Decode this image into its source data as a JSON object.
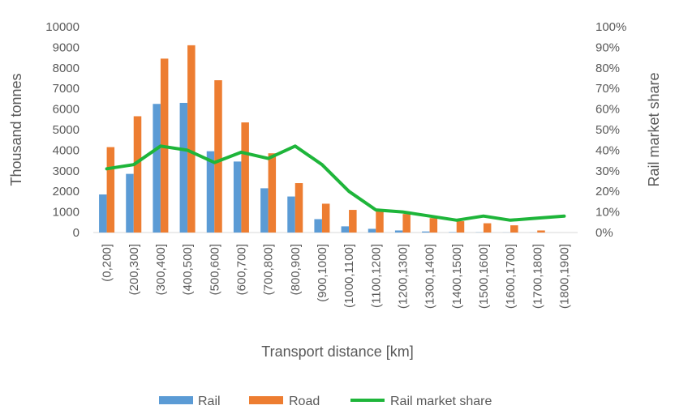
{
  "chart_data": {
    "type": "bar",
    "categories": [
      "(0,200]",
      "(200,300]",
      "(300,400]",
      "(400,500]",
      "(500,600]",
      "(600,700]",
      "(700,800]",
      "(800,900]",
      "(900,1000]",
      "(1000,1100]",
      "(1100,1200]",
      "(1200,1300]",
      "(1300,1400]",
      "(1400,1500]",
      "(1500,1600]",
      "(1600,1700]",
      "(1700,1800]",
      "(1800,1900]"
    ],
    "series": [
      {
        "name": "Rail",
        "type": "bar",
        "axis": "left",
        "color": "#5B9BD5",
        "values": [
          1850,
          2850,
          6250,
          6300,
          3950,
          3450,
          2150,
          1750,
          650,
          300,
          180,
          100,
          50,
          20,
          10,
          5,
          5,
          0
        ]
      },
      {
        "name": "Road",
        "type": "bar",
        "axis": "left",
        "color": "#ED7D31",
        "values": [
          4150,
          5650,
          8450,
          9100,
          7400,
          5350,
          3850,
          2400,
          1400,
          1100,
          1100,
          900,
          700,
          550,
          450,
          350,
          100,
          0
        ]
      },
      {
        "name": "Rail market share",
        "type": "line",
        "axis": "right",
        "color": "#1EB53A",
        "values": [
          31,
          33,
          42,
          40,
          34,
          39,
          36,
          42,
          33,
          20,
          11,
          10,
          8,
          6,
          8,
          6,
          7,
          8
        ]
      }
    ],
    "xlabel": "Transport distance [km]",
    "ylabel": "Thousand tonnes",
    "y2label": "Rail market share",
    "ylim": [
      0,
      10000
    ],
    "yticks": [
      "0",
      "1000",
      "2000",
      "3000",
      "4000",
      "5000",
      "6000",
      "7000",
      "8000",
      "9000",
      "10000"
    ],
    "y2lim": [
      0,
      100
    ],
    "y2ticks": [
      "0%",
      "10%",
      "20%",
      "30%",
      "40%",
      "50%",
      "60%",
      "70%",
      "80%",
      "90%",
      "100%"
    ],
    "grid": false,
    "legend": "bottom",
    "legend_entries": [
      "Rail",
      "Road",
      "Rail market share"
    ]
  }
}
